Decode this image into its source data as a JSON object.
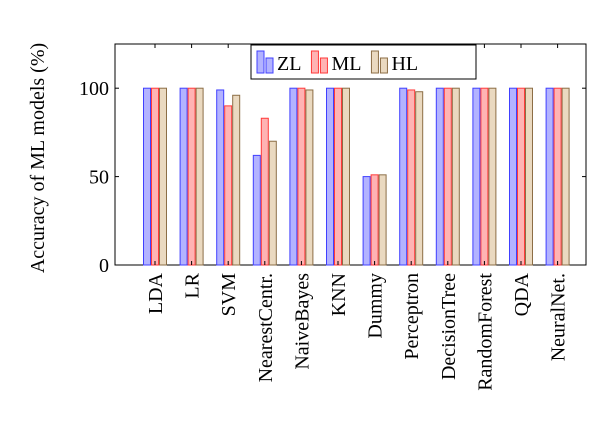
{
  "chart_data": {
    "type": "bar",
    "title": "",
    "xlabel": "",
    "ylabel": "Accuracy of ML models (%)",
    "ylim": [
      0,
      125
    ],
    "yticks": [
      0,
      50,
      100
    ],
    "grid": false,
    "legend_position": "top-center",
    "categories": [
      "LDA",
      "LR",
      "SVM",
      "NearestCentr.",
      "NaiveBayes",
      "KNN",
      "Dummy",
      "Perceptron",
      "DecisionTree",
      "RandomForest",
      "QDA",
      "NeuralNet."
    ],
    "series": [
      {
        "name": "ZL",
        "color": "#4040ff",
        "fill": "#b3b3ff",
        "values": [
          100,
          100,
          99,
          62,
          100,
          100,
          50,
          100,
          100,
          100,
          100,
          100
        ]
      },
      {
        "name": "ML",
        "color": "#ff3a3a",
        "fill": "#ffb3b3",
        "values": [
          100,
          100,
          90,
          83,
          100,
          100,
          51,
          99,
          100,
          100,
          100,
          100
        ]
      },
      {
        "name": "HL",
        "color": "#8c6e46",
        "fill": "#ead9c0",
        "values": [
          100,
          100,
          96,
          70,
          99,
          100,
          51,
          98,
          100,
          100,
          100,
          100
        ]
      }
    ]
  }
}
